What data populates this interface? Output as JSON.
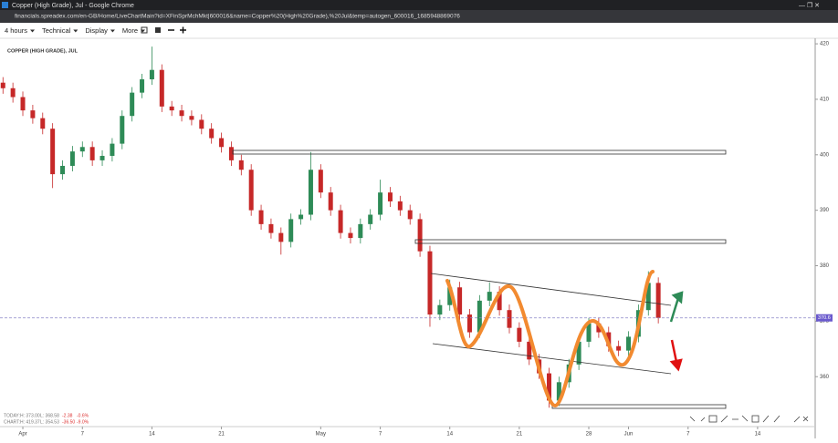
{
  "browser": {
    "title": "Copper (High Grade), Jul - Google Chrome",
    "url": "financials.spreadex.com/en-GB/Home/LiveChartMain?id=XFinSprMchMkt|600016&name=Copper%20(High%20Grade),%20Jul&temp=autogen_600016_1685948869076"
  },
  "toolbar": [
    "4 hours",
    "Technical",
    "Display",
    "More"
  ],
  "stats": [
    {
      "label": "TODAY:",
      "high": "H: 373.00",
      "low": "L: 368.58",
      "change": "-2.38",
      "pct": "-0.6%"
    },
    {
      "label": "CHART:",
      "high": "H: 419.37",
      "low": "L: 354.53",
      "change": "-36.50",
      "pct": "-9.0%"
    }
  ],
  "chart_data": {
    "type": "candlestick",
    "title": "COPPER (HIGH GRADE), JUL",
    "up_color": "#2e8b57",
    "down_color": "#c62828",
    "x": [
      -2,
      -1,
      0,
      1,
      2,
      3,
      4,
      5,
      6,
      7,
      8,
      9,
      10,
      11,
      12,
      13,
      14,
      15,
      16,
      17,
      18,
      19,
      20,
      21,
      22,
      23,
      24,
      25,
      26,
      27,
      28,
      29,
      30,
      31,
      32,
      33,
      34,
      35,
      36,
      37,
      38,
      39,
      40,
      41,
      42,
      43,
      44,
      45,
      46,
      47,
      48,
      49,
      50,
      51,
      52,
      53,
      54,
      55,
      56,
      57,
      58,
      59,
      60,
      61,
      62,
      63,
      64
    ],
    "open": [
      413,
      412,
      410.4,
      408,
      406.6,
      404.7,
      396.5,
      398,
      400.6,
      401.4,
      399,
      399.8,
      402,
      407,
      411.2,
      413.6,
      415.3,
      408.7,
      408,
      407,
      406.3,
      404.7,
      403,
      401.4,
      399,
      397.3,
      390,
      387.5,
      385.9,
      384.3,
      388.4,
      389.2,
      397.3,
      393.2,
      390,
      385.9,
      385,
      387.5,
      389.2,
      393.2,
      391.6,
      390,
      388.4,
      382.6,
      371.2,
      372.9,
      376.1,
      371.2,
      368,
      373.7,
      375.3,
      372,
      368.8,
      366.3,
      363.1,
      360.6,
      355.7,
      359,
      362.2,
      366.3,
      369.6,
      368,
      365.5,
      364.7,
      367.2,
      372,
      376.9
    ],
    "high": [
      414,
      413,
      411.4,
      409,
      407.6,
      405.7,
      399,
      401.6,
      402.4,
      402.4,
      400.8,
      403,
      408,
      412.2,
      414.6,
      419.5,
      416.3,
      409.7,
      409,
      408,
      407.3,
      405.7,
      404,
      402.4,
      400,
      398.3,
      391,
      388.5,
      386.9,
      389.4,
      390.2,
      400.5,
      398.3,
      394.2,
      391,
      386.9,
      388.5,
      390.2,
      395.5,
      394.2,
      392.6,
      391,
      389.4,
      383.6,
      373.9,
      377.5,
      377.1,
      372.2,
      374.7,
      377,
      376.3,
      373,
      369.8,
      367.3,
      364.1,
      361.6,
      360,
      363.2,
      367.3,
      370.6,
      370.6,
      369,
      366.5,
      368.2,
      373,
      379,
      377.9
    ],
    "low": [
      411,
      409.4,
      407,
      405.6,
      403.7,
      394,
      395.5,
      397,
      399.6,
      398,
      398,
      398.8,
      401,
      406,
      410.2,
      412.6,
      407.7,
      407,
      406,
      405.3,
      403.7,
      402,
      400.4,
      398,
      396.3,
      389,
      386.5,
      384.9,
      382,
      383.3,
      387.4,
      388.2,
      392.2,
      389,
      384.9,
      384,
      384,
      386.5,
      388.2,
      390.6,
      389,
      387.4,
      381.6,
      369,
      370.2,
      371.9,
      370.2,
      367,
      367,
      372.7,
      371,
      367.8,
      365.3,
      362.1,
      359.6,
      354.4,
      354.7,
      358,
      361.2,
      365.3,
      367,
      364.5,
      363.7,
      363.7,
      366.2,
      371,
      369.6
    ],
    "close": [
      412,
      410.4,
      408,
      406.6,
      404.7,
      396.5,
      398,
      400.6,
      401.4,
      399,
      399.8,
      402,
      407,
      411.2,
      413.6,
      415.3,
      408.7,
      408,
      407,
      406.3,
      404.7,
      403,
      401.4,
      399,
      397.3,
      390,
      387.5,
      385.9,
      384.3,
      388.4,
      389.2,
      397.3,
      393.2,
      390,
      385.9,
      385,
      387.5,
      389.2,
      393.2,
      391.6,
      390,
      388.4,
      382.6,
      371.2,
      372.9,
      376.1,
      371.2,
      368,
      373.7,
      375.3,
      372,
      368.8,
      366.3,
      363.1,
      360.6,
      355.7,
      359,
      362.2,
      366.3,
      369.6,
      368,
      365.5,
      364.7,
      367.2,
      372,
      376.9,
      370.6
    ],
    "last_price": 370.6,
    "xlim": [
      -2.3,
      79.8
    ],
    "xticks": [
      {
        "value": 0,
        "label": "Apr"
      },
      {
        "value": 6,
        "label": "7"
      },
      {
        "value": 13,
        "label": "14"
      },
      {
        "value": 20,
        "label": "21"
      },
      {
        "value": 30,
        "label": "May"
      },
      {
        "value": 36,
        "label": "7"
      },
      {
        "value": 43,
        "label": "14"
      },
      {
        "value": 50,
        "label": "21"
      },
      {
        "value": 57,
        "label": "28"
      },
      {
        "value": 61,
        "label": "Jun"
      },
      {
        "value": 67,
        "label": "7"
      },
      {
        "value": 74,
        "label": "14"
      }
    ],
    "ylim": [
      351,
      421
    ],
    "yticks": [
      360,
      370,
      380,
      390,
      400,
      410,
      420
    ]
  }
}
